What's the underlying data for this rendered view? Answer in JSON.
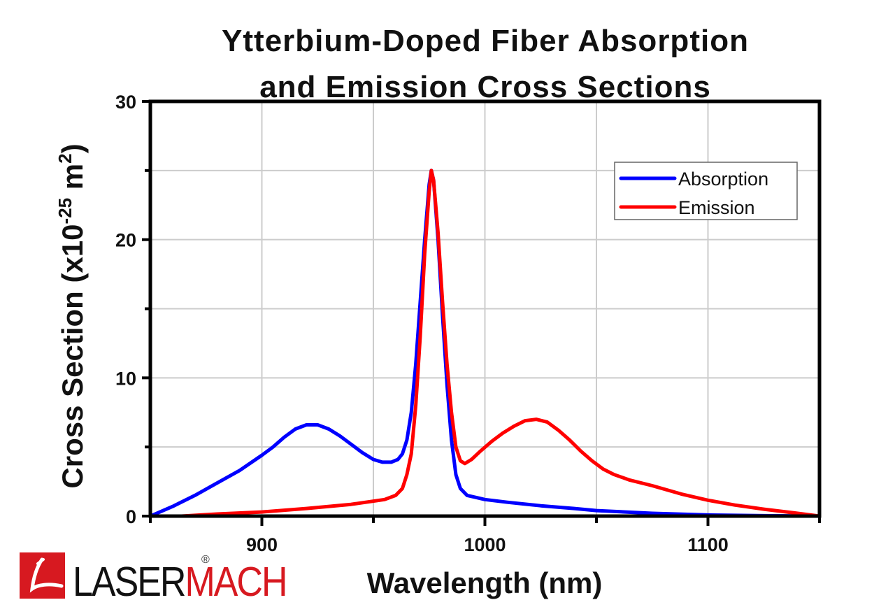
{
  "chart_data": {
    "type": "line",
    "title": [
      "Ytterbium-Doped Fiber Absorption",
      "and Emission Cross Sections"
    ],
    "xlabel": "Wavelength (nm)",
    "ylabel": {
      "main": "Cross Section (x10",
      "exponent": "-25",
      "unit": " m",
      "unit_exp": "2",
      "close": ")"
    },
    "xlim": [
      850,
      1150
    ],
    "ylim": [
      0,
      30
    ],
    "x_ticks": [
      900,
      1000,
      1100
    ],
    "x_tick_labels": [
      "900",
      "1000",
      "1100"
    ],
    "x_minor_ticks": [
      850,
      950,
      1050,
      1150
    ],
    "y_ticks": [
      0,
      10,
      20,
      30
    ],
    "y_tick_labels": [
      "0",
      "10",
      "20",
      "30"
    ],
    "y_minor_ticks": [
      5,
      15,
      25
    ],
    "grid": true,
    "legend_position": "top-right",
    "series": [
      {
        "name": "Absorption",
        "color": "#0000ff",
        "points": [
          [
            850,
            0
          ],
          [
            860,
            0.7
          ],
          [
            870,
            1.5
          ],
          [
            880,
            2.4
          ],
          [
            890,
            3.3
          ],
          [
            900,
            4.4
          ],
          [
            905,
            5.0
          ],
          [
            910,
            5.7
          ],
          [
            915,
            6.3
          ],
          [
            920,
            6.6
          ],
          [
            925,
            6.6
          ],
          [
            930,
            6.3
          ],
          [
            935,
            5.8
          ],
          [
            940,
            5.2
          ],
          [
            945,
            4.6
          ],
          [
            950,
            4.1
          ],
          [
            954,
            3.9
          ],
          [
            958,
            3.9
          ],
          [
            961,
            4.1
          ],
          [
            963,
            4.5
          ],
          [
            965,
            5.5
          ],
          [
            967,
            7.5
          ],
          [
            969,
            11
          ],
          [
            971,
            15.5
          ],
          [
            973,
            20
          ],
          [
            975,
            24
          ],
          [
            976,
            25
          ],
          [
            977,
            24.3
          ],
          [
            979,
            20
          ],
          [
            981,
            14.5
          ],
          [
            983,
            9.5
          ],
          [
            985,
            5.5
          ],
          [
            987,
            3
          ],
          [
            989,
            2
          ],
          [
            992,
            1.5
          ],
          [
            996,
            1.35
          ],
          [
            1000,
            1.2
          ],
          [
            1010,
            1.0
          ],
          [
            1025,
            0.75
          ],
          [
            1040,
            0.55
          ],
          [
            1050,
            0.4
          ],
          [
            1075,
            0.2
          ],
          [
            1100,
            0.08
          ],
          [
            1125,
            0.03
          ],
          [
            1150,
            0
          ]
        ]
      },
      {
        "name": "Emission",
        "color": "#ff0000",
        "points": [
          [
            864,
            0
          ],
          [
            880,
            0.15
          ],
          [
            900,
            0.3
          ],
          [
            920,
            0.55
          ],
          [
            940,
            0.85
          ],
          [
            955,
            1.2
          ],
          [
            960,
            1.5
          ],
          [
            963,
            2.0
          ],
          [
            965,
            3.0
          ],
          [
            967,
            4.5
          ],
          [
            969,
            8
          ],
          [
            971,
            13
          ],
          [
            973,
            19
          ],
          [
            975,
            23.5
          ],
          [
            976,
            25
          ],
          [
            977,
            24.3
          ],
          [
            979,
            20.5
          ],
          [
            981,
            15.5
          ],
          [
            983,
            11
          ],
          [
            985,
            7.5
          ],
          [
            987,
            5
          ],
          [
            989,
            4.0
          ],
          [
            991,
            3.8
          ],
          [
            994,
            4.1
          ],
          [
            998,
            4.7
          ],
          [
            1003,
            5.4
          ],
          [
            1008,
            6.0
          ],
          [
            1013,
            6.5
          ],
          [
            1018,
            6.9
          ],
          [
            1023,
            7.0
          ],
          [
            1028,
            6.8
          ],
          [
            1033,
            6.2
          ],
          [
            1038,
            5.5
          ],
          [
            1043,
            4.7
          ],
          [
            1048,
            4.0
          ],
          [
            1053,
            3.4
          ],
          [
            1058,
            3.0
          ],
          [
            1065,
            2.6
          ],
          [
            1075,
            2.2
          ],
          [
            1088,
            1.6
          ],
          [
            1100,
            1.15
          ],
          [
            1112,
            0.8
          ],
          [
            1125,
            0.5
          ],
          [
            1138,
            0.25
          ],
          [
            1150,
            0
          ]
        ]
      }
    ]
  },
  "branding": {
    "logo_word_dark": "LASER",
    "logo_word_red": "MACH",
    "logo_mark": "L",
    "registered": "®",
    "brand_color": "#d71920"
  }
}
